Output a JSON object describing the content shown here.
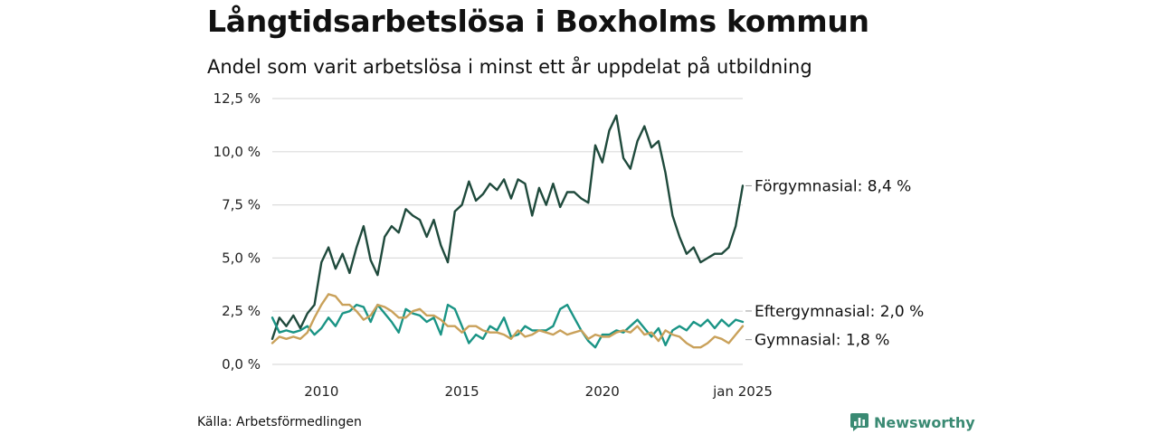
{
  "title": "Långtidsarbetslösa i Boxholms kommun",
  "subtitle": "Andel som varit arbetslösa i minst ett år uppdelat på utbildning",
  "source": "Källa: Arbetsförmedlingen",
  "brand": {
    "name": "Newsworthy",
    "icon": "newsworthy-logo-icon",
    "color": "#3a8a73"
  },
  "chart_data": {
    "type": "line",
    "x_unit": "year",
    "x": [
      2008.25,
      2008.5,
      2008.75,
      2009.0,
      2009.25,
      2009.5,
      2009.75,
      2010.0,
      2010.25,
      2010.5,
      2010.75,
      2011.0,
      2011.25,
      2011.5,
      2011.75,
      2012.0,
      2012.25,
      2012.5,
      2012.75,
      2013.0,
      2013.25,
      2013.5,
      2013.75,
      2014.0,
      2014.25,
      2014.5,
      2014.75,
      2015.0,
      2015.25,
      2015.5,
      2015.75,
      2016.0,
      2016.25,
      2016.5,
      2016.75,
      2017.0,
      2017.25,
      2017.5,
      2017.75,
      2018.0,
      2018.25,
      2018.5,
      2018.75,
      2019.0,
      2019.25,
      2019.5,
      2019.75,
      2020.0,
      2020.25,
      2020.5,
      2020.75,
      2021.0,
      2021.25,
      2021.5,
      2021.75,
      2022.0,
      2022.25,
      2022.5,
      2022.75,
      2023.0,
      2023.25,
      2023.5,
      2023.75,
      2024.0,
      2024.25,
      2024.5,
      2024.75,
      2025.0
    ],
    "xlim": [
      2008.25,
      2025.0
    ],
    "x_ticks": [
      2010,
      2015,
      2020,
      2025
    ],
    "x_tick_labels": [
      "2010",
      "2015",
      "2020",
      "jan 2025"
    ],
    "y_ticks": [
      0,
      2.5,
      5,
      7.5,
      10,
      12.5
    ],
    "y_tick_labels": [
      "0,0 %",
      "2,5 %",
      "5,0 %",
      "7,5 %",
      "10,0 %",
      "12,5 %"
    ],
    "ylim": [
      0,
      12.5
    ],
    "grid": true,
    "series": [
      {
        "name": "Förgymnasial",
        "label": "Förgymnasial: 8,4 %",
        "color": "#1f4a3c",
        "values": [
          1.2,
          2.2,
          1.8,
          2.3,
          1.7,
          2.4,
          2.8,
          4.8,
          5.5,
          4.5,
          5.2,
          4.3,
          5.5,
          6.5,
          4.9,
          4.2,
          6.0,
          6.5,
          6.2,
          7.3,
          7.0,
          6.8,
          6.0,
          6.8,
          5.6,
          4.8,
          7.2,
          7.5,
          8.6,
          7.7,
          8.0,
          8.5,
          8.2,
          8.7,
          7.8,
          8.7,
          8.5,
          7.0,
          8.3,
          7.5,
          8.5,
          7.4,
          8.1,
          8.1,
          7.8,
          7.6,
          10.3,
          9.5,
          11.0,
          11.7,
          9.7,
          9.2,
          10.5,
          11.2,
          10.2,
          10.5,
          9.0,
          7.0,
          6.0,
          5.2,
          5.5,
          4.8,
          5.0,
          5.2,
          5.2,
          5.5,
          6.5,
          8.4
        ]
      },
      {
        "name": "Eftergymnasial",
        "label": "Eftergymnasial: 2,0 %",
        "color": "#1a9485",
        "values": [
          2.2,
          1.5,
          1.6,
          1.5,
          1.6,
          1.8,
          1.4,
          1.7,
          2.2,
          1.8,
          2.4,
          2.5,
          2.8,
          2.7,
          2.0,
          2.8,
          2.4,
          2.0,
          1.5,
          2.6,
          2.4,
          2.3,
          2.0,
          2.2,
          1.4,
          2.8,
          2.6,
          1.8,
          1.0,
          1.4,
          1.2,
          1.8,
          1.6,
          2.2,
          1.3,
          1.4,
          1.8,
          1.6,
          1.6,
          1.6,
          1.8,
          2.6,
          2.8,
          2.2,
          1.6,
          1.1,
          0.8,
          1.4,
          1.4,
          1.6,
          1.5,
          1.8,
          2.1,
          1.7,
          1.3,
          1.7,
          0.9,
          1.6,
          1.8,
          1.6,
          2.0,
          1.8,
          2.1,
          1.7,
          2.1,
          1.8,
          2.1,
          2.0
        ]
      },
      {
        "name": "Gymnasial",
        "label": "Gymnasial: 1,8 %",
        "color": "#c9a15a",
        "values": [
          1.0,
          1.3,
          1.2,
          1.3,
          1.2,
          1.5,
          2.2,
          2.8,
          3.3,
          3.2,
          2.8,
          2.8,
          2.5,
          2.1,
          2.3,
          2.8,
          2.7,
          2.5,
          2.2,
          2.2,
          2.5,
          2.6,
          2.3,
          2.3,
          2.1,
          1.8,
          1.8,
          1.5,
          1.8,
          1.8,
          1.6,
          1.5,
          1.5,
          1.4,
          1.2,
          1.6,
          1.3,
          1.4,
          1.6,
          1.5,
          1.4,
          1.6,
          1.4,
          1.5,
          1.6,
          1.2,
          1.4,
          1.3,
          1.3,
          1.5,
          1.6,
          1.5,
          1.8,
          1.4,
          1.5,
          1.1,
          1.6,
          1.4,
          1.3,
          1.0,
          0.8,
          0.8,
          1.0,
          1.3,
          1.2,
          1.0,
          1.4,
          1.8
        ]
      }
    ]
  }
}
